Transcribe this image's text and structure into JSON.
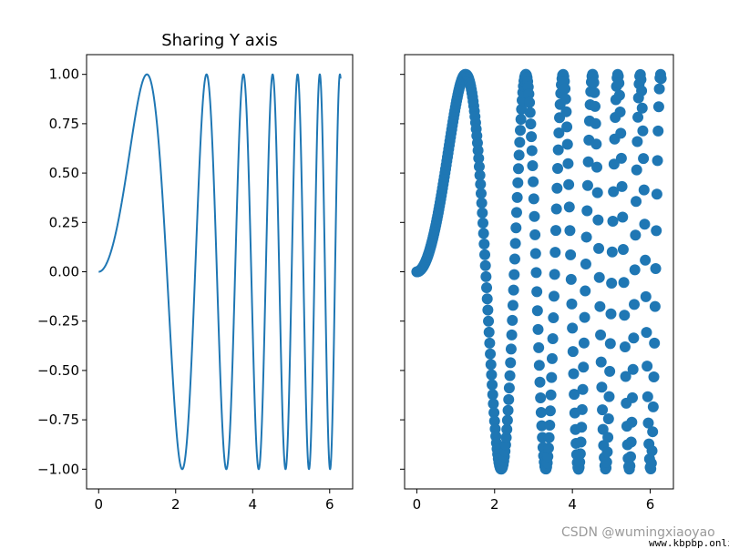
{
  "chart_data": [
    {
      "type": "line",
      "title": "Sharing Y axis",
      "function": "y = sin(x^2)",
      "x_range": [
        0,
        6.283
      ],
      "xlim": [
        -0.314,
        6.597
      ],
      "ylim": [
        -1.1,
        1.1
      ],
      "xticks": [
        0,
        2,
        4,
        6
      ],
      "xtick_labels": [
        "0",
        "2",
        "4",
        "6"
      ],
      "yticks": [
        -1.0,
        -0.75,
        -0.5,
        -0.25,
        0.0,
        0.25,
        0.5,
        0.75,
        1.0
      ],
      "ytick_labels": [
        "−1.00",
        "−0.75",
        "−0.50",
        "−0.25",
        "0.00",
        "0.25",
        "0.50",
        "0.75",
        "1.00"
      ],
      "color": "#1f77b4",
      "series": [
        {
          "x": [
            0,
            0.5,
            1.0,
            1.2533,
            1.5,
            1.7725,
            2.0,
            2.1708,
            2.5066,
            2.8025,
            3.0,
            3.07,
            3.316,
            3.5449,
            3.7599,
            3.9633,
            4.1568,
            4.3416,
            4.5189,
            4.6895,
            4.8541,
            5.0133,
            5.1677,
            5.3174,
            5.463,
            5.605,
            5.7432,
            5.8783,
            6.0103,
            6.1394,
            6.2659,
            6.2832
          ],
          "y": [
            0,
            0.247,
            0.841,
            1.0,
            0.778,
            0.0,
            -0.757,
            -1.0,
            0.0,
            1.0,
            0.412,
            0.0,
            -1.0,
            0.0,
            1.0,
            0.0,
            -1.0,
            0.0,
            1.0,
            0.0,
            -1.0,
            0.0,
            1.0,
            0.0,
            -1.0,
            0.0,
            1.0,
            0.0,
            -1.0,
            0.0,
            1.0,
            0.978
          ]
        }
      ]
    },
    {
      "type": "scatter",
      "title": "",
      "function": "y = sin(x^2)",
      "points": 400,
      "x_range": [
        0,
        6.283
      ],
      "xlim": [
        -0.314,
        6.597
      ],
      "ylim": [
        -1.1,
        1.1
      ],
      "sharey": true,
      "xticks": [
        0,
        2,
        4,
        6
      ],
      "xtick_labels": [
        "0",
        "2",
        "4",
        "6"
      ],
      "yticks": [
        -1.0,
        -0.75,
        -0.5,
        -0.25,
        0.0,
        0.25,
        0.5,
        0.75,
        1.0
      ],
      "ytick_labels_visible": false,
      "color": "#1f77b4",
      "series": [
        {
          "x": [
            0,
            0.5,
            1.0,
            1.2533,
            1.5,
            2.0,
            2.1708,
            2.5066,
            2.8025,
            3.07,
            3.316,
            3.5449,
            3.7599,
            4.1568,
            4.5189,
            5.1677,
            5.7432,
            6.2659
          ],
          "y": [
            0,
            0.247,
            0.841,
            1.0,
            0.778,
            -0.757,
            -1.0,
            0.0,
            1.0,
            0.0,
            -1.0,
            0.0,
            1.0,
            -1.0,
            1.0,
            1.0,
            1.0,
            1.0
          ]
        }
      ]
    }
  ],
  "watermark": {
    "author": "CSDN @wumingxiaoyao",
    "site": "www.kbpbp.online"
  }
}
